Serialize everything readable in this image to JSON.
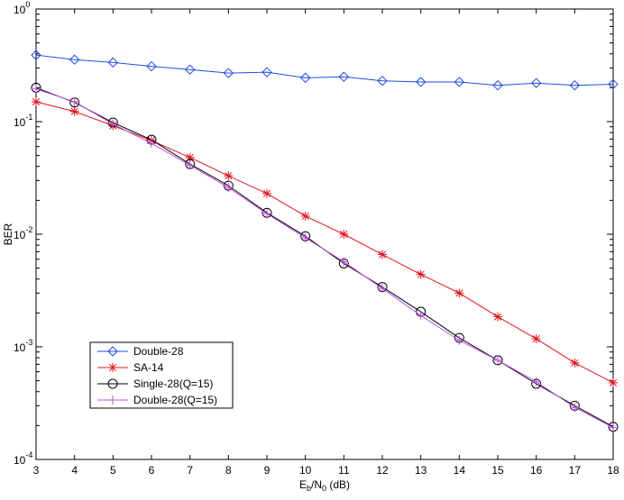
{
  "chart_data": {
    "type": "line",
    "xlabel": {
      "main": "E",
      "sub1": "b",
      "mid": "/N",
      "sub2": "0",
      "tail": " (dB)"
    },
    "ylabel": "BER",
    "xlim": [
      3,
      18
    ],
    "ylim": [
      0.0001,
      1
    ],
    "yscale": "log",
    "grid": false,
    "legend_position": "bottom-left",
    "x": [
      3,
      4,
      5,
      6,
      7,
      8,
      9,
      10,
      11,
      12,
      13,
      14,
      15,
      16,
      17,
      18
    ],
    "x_ticks": [
      3,
      4,
      5,
      6,
      7,
      8,
      9,
      10,
      11,
      12,
      13,
      14,
      15,
      16,
      17,
      18
    ],
    "y_ticks": [
      {
        "value": 1,
        "base": "10",
        "exp": "0"
      },
      {
        "value": 0.1,
        "base": "10",
        "exp": "-1"
      },
      {
        "value": 0.01,
        "base": "10",
        "exp": "-2"
      },
      {
        "value": 0.001,
        "base": "10",
        "exp": "-3"
      },
      {
        "value": 0.0001,
        "base": "10",
        "exp": "-4"
      }
    ],
    "series": [
      {
        "name": "Double-28",
        "color": "#1f4ce0",
        "marker": "diamond",
        "values": [
          0.39,
          0.355,
          0.335,
          0.31,
          0.29,
          0.27,
          0.275,
          0.245,
          0.25,
          0.23,
          0.225,
          0.225,
          0.21,
          0.22,
          0.21,
          0.215
        ]
      },
      {
        "name": "SA-14",
        "color": "#e0141e",
        "marker": "asterisk",
        "values": [
          0.15,
          0.123,
          0.092,
          0.068,
          0.048,
          0.033,
          0.023,
          0.0145,
          0.01,
          0.0066,
          0.0044,
          0.003,
          0.00185,
          0.00118,
          0.00072,
          0.00048
        ]
      },
      {
        "name": "Single-28(Q=15)",
        "color": "#000000",
        "marker": "circle",
        "values": [
          0.2,
          0.148,
          0.098,
          0.069,
          0.042,
          0.027,
          0.0155,
          0.0096,
          0.0055,
          0.0034,
          0.00205,
          0.0012,
          0.00076,
          0.00047,
          0.0003,
          0.000195
        ]
      },
      {
        "name": "Double-28(Q=15)",
        "color": "#c050e0",
        "marker": "plus",
        "values": [
          0.195,
          0.15,
          0.095,
          0.064,
          0.041,
          0.026,
          0.0152,
          0.0093,
          0.0057,
          0.0033,
          0.0019,
          0.00114,
          0.00076,
          0.00049,
          0.00029,
          0.000192
        ]
      }
    ]
  }
}
